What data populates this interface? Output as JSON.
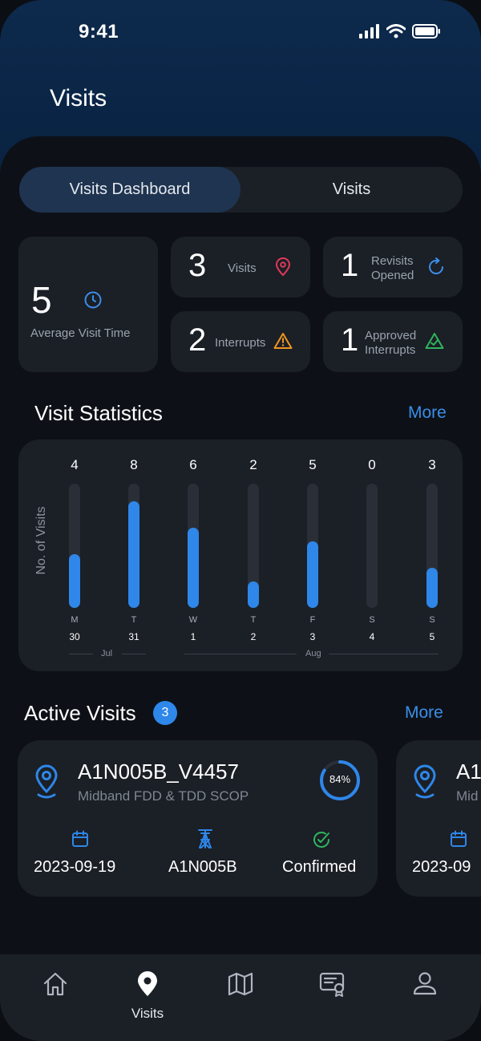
{
  "status_bar": {
    "time": "9:41"
  },
  "header": {
    "title": "Visits"
  },
  "tabs": [
    {
      "label": "Visits Dashboard",
      "active": true
    },
    {
      "label": "Visits",
      "active": false
    }
  ],
  "summary": {
    "average": {
      "value": "5",
      "label": "Average Visit Time",
      "icon": "clock-icon"
    },
    "visits": {
      "value": "3",
      "label": "Visits",
      "icon": "map-pin-icon",
      "color": "#e0395a"
    },
    "revisits": {
      "value": "1",
      "label_line1": "Revisits",
      "label_line2": "Opened",
      "icon": "refresh-icon",
      "color": "#3b8eea"
    },
    "interrupts": {
      "value": "2",
      "label": "Interrupts",
      "icon": "warning-icon",
      "color": "#f0961f"
    },
    "approved": {
      "value": "1",
      "label_line1": "Approved",
      "label_line2": "Interrupts",
      "icon": "approved-triangle-icon",
      "color": "#2fb55e"
    }
  },
  "statistics": {
    "title": "Visit Statistics",
    "more": "More"
  },
  "chart_data": {
    "type": "bar",
    "ylabel": "No. of Visits",
    "categories": [
      "M 30",
      "T 31",
      "W 1",
      "T 2",
      "F 3",
      "S 4",
      "S 5"
    ],
    "days": [
      "M",
      "T",
      "W",
      "T",
      "F",
      "S",
      "S"
    ],
    "dates": [
      "30",
      "31",
      "1",
      "2",
      "3",
      "4",
      "5"
    ],
    "months": [
      "Jul",
      "Aug"
    ],
    "values": [
      4,
      8,
      6,
      2,
      5,
      0,
      3
    ],
    "ylim": [
      0,
      8
    ],
    "bar_color": "#2e87e9"
  },
  "active_visits": {
    "title": "Active Visits",
    "count": "3",
    "more": "More",
    "cards": [
      {
        "name": "A1N005B_V4457",
        "subtitle": "Midband FDD & TDD SCOP",
        "progress": "84%",
        "progress_fraction": 0.84,
        "date": "2023-09-19",
        "site": "A1N005B",
        "status": "Confirmed"
      },
      {
        "name": "A1",
        "subtitle": "Mid",
        "date": "2023-09"
      }
    ]
  },
  "bottom_nav": [
    {
      "icon": "home-icon",
      "label": ""
    },
    {
      "icon": "map-pin-icon",
      "label": "Visits",
      "active": true
    },
    {
      "icon": "map-icon",
      "label": ""
    },
    {
      "icon": "certificate-icon",
      "label": ""
    },
    {
      "icon": "user-icon",
      "label": ""
    }
  ]
}
